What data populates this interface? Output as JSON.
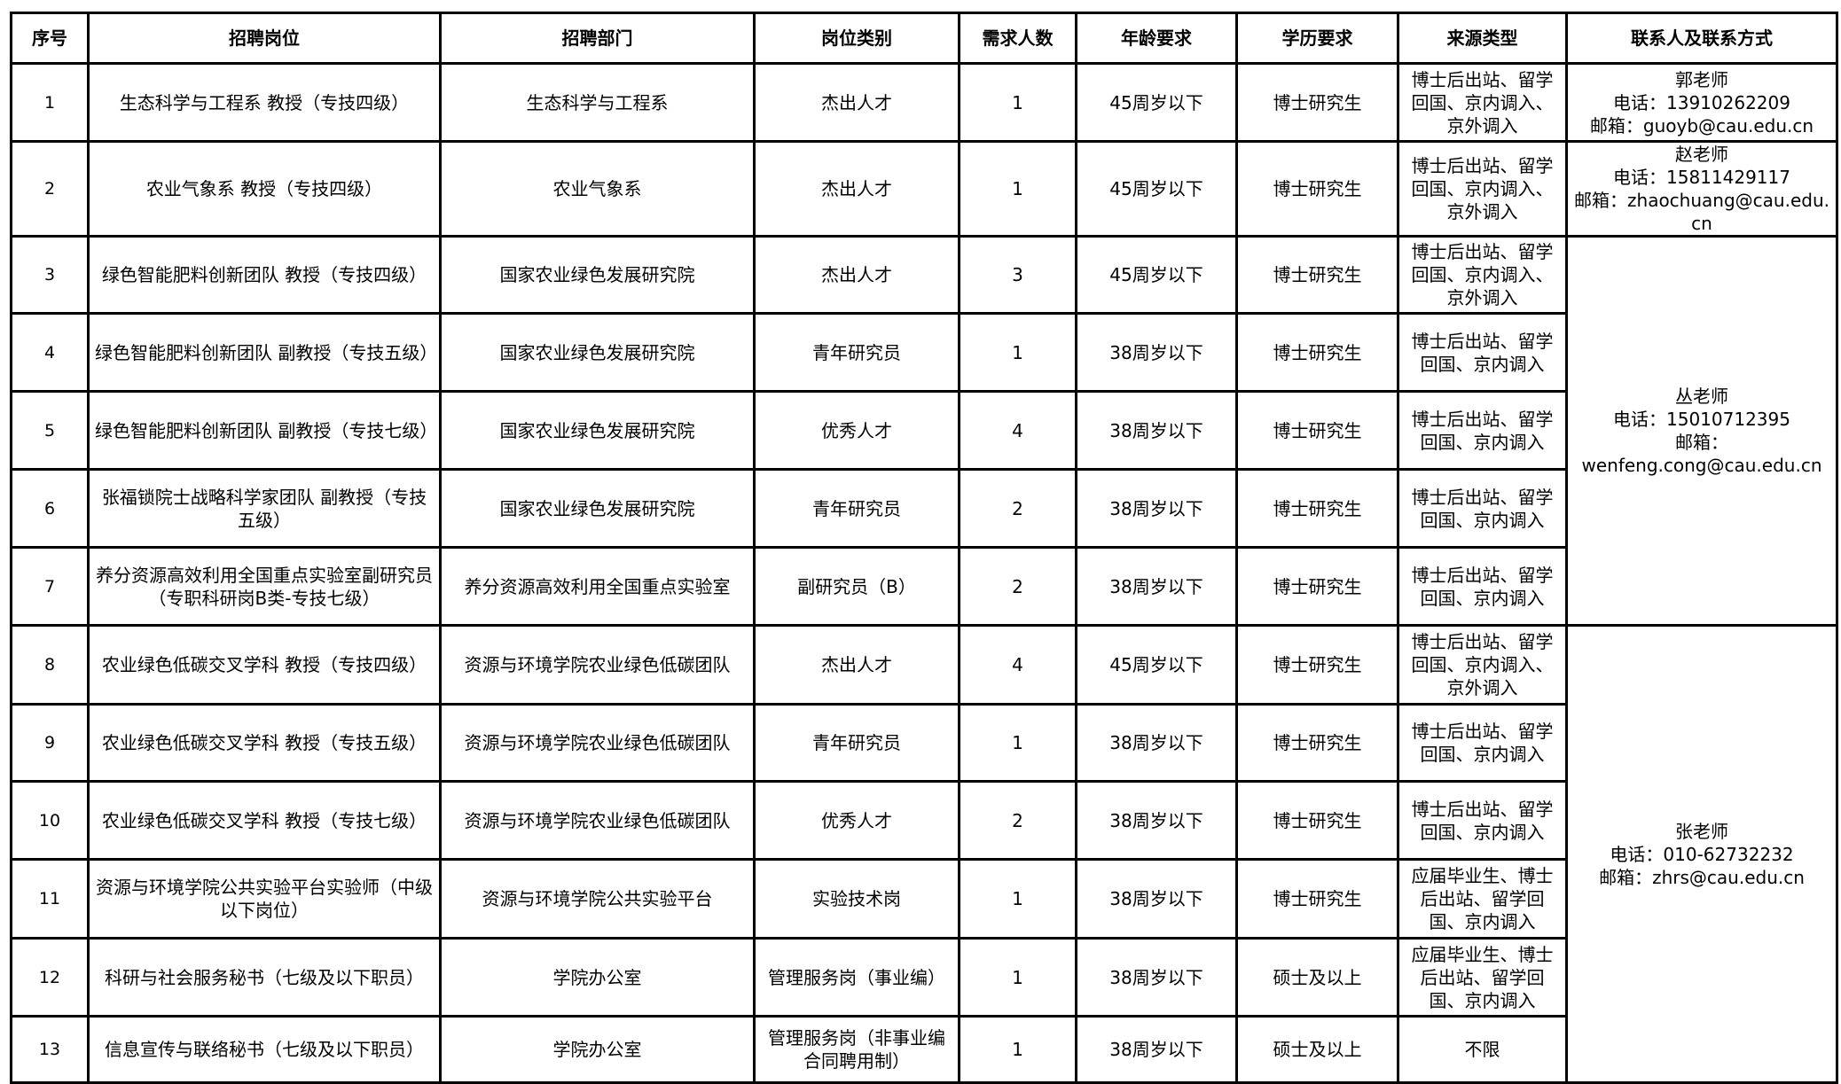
{
  "headers": [
    "序号",
    "招聘岗位",
    "招聘部门",
    "岗位类别",
    "需求人数",
    "年龄要求",
    "学历要求",
    "来源类型",
    "联系人及联系方式"
  ],
  "rows": [
    {
      "no": "1",
      "position": "生态科学与工程系 教授（专技四级）",
      "dept": "生态科学与工程系",
      "category": "杰出人才",
      "count": "1",
      "age": "45周岁以下",
      "edu": "博士研究生",
      "source": "博士后出站、留学回国、京内调入、京外调入"
    },
    {
      "no": "2",
      "position": "农业气象系 教授（专技四级）",
      "dept": "农业气象系",
      "category": "杰出人才",
      "count": "1",
      "age": "45周岁以下",
      "edu": "博士研究生",
      "source": "博士后出站、留学回国、京内调入、京外调入"
    },
    {
      "no": "3",
      "position": "绿色智能肥料创新团队 教授（专技四级）",
      "dept": "国家农业绿色发展研究院",
      "category": "杰出人才",
      "count": "3",
      "age": "45周岁以下",
      "edu": "博士研究生",
      "source": "博士后出站、留学回国、京内调入、京外调入"
    },
    {
      "no": "4",
      "position": "绿色智能肥料创新团队 副教授（专技五级）",
      "dept": "国家农业绿色发展研究院",
      "category": "青年研究员",
      "count": "1",
      "age": "38周岁以下",
      "edu": "博士研究生",
      "source": "博士后出站、留学回国、京内调入"
    },
    {
      "no": "5",
      "position": "绿色智能肥料创新团队 副教授（专技七级）",
      "dept": "国家农业绿色发展研究院",
      "category": "优秀人才",
      "count": "4",
      "age": "38周岁以下",
      "edu": "博士研究生",
      "source": "博士后出站、留学回国、京内调入"
    },
    {
      "no": "6",
      "position": "张福锁院士战略科学家团队 副教授（专技五级）",
      "dept": "国家农业绿色发展研究院",
      "category": "青年研究员",
      "count": "2",
      "age": "38周岁以下",
      "edu": "博士研究生",
      "source": "博士后出站、留学回国、京内调入"
    },
    {
      "no": "7",
      "position": "养分资源高效利用全国重点实验室副研究员（专职科研岗B类-专技七级）",
      "dept": "养分资源高效利用全国重点实验室",
      "category": "副研究员（B）",
      "count": "2",
      "age": "38周岁以下",
      "edu": "博士研究生",
      "source": "博士后出站、留学回国、京内调入"
    },
    {
      "no": "8",
      "position": "农业绿色低碳交叉学科 教授（专技四级）",
      "dept": "资源与环境学院农业绿色低碳团队",
      "category": "杰出人才",
      "count": "4",
      "age": "45周岁以下",
      "edu": "博士研究生",
      "source": "博士后出站、留学回国、京内调入、京外调入"
    },
    {
      "no": "9",
      "position": "农业绿色低碳交叉学科 教授（专技五级）",
      "dept": "资源与环境学院农业绿色低碳团队",
      "category": "青年研究员",
      "count": "1",
      "age": "38周岁以下",
      "edu": "博士研究生",
      "source": "博士后出站、留学回国、京内调入"
    },
    {
      "no": "10",
      "position": "农业绿色低碳交叉学科 教授（专技七级）",
      "dept": "资源与环境学院农业绿色低碳团队",
      "category": "优秀人才",
      "count": "2",
      "age": "38周岁以下",
      "edu": "博士研究生",
      "source": "博士后出站、留学回国、京内调入"
    },
    {
      "no": "11",
      "position": "资源与环境学院公共实验平台实验师（中级以下岗位）",
      "dept": "资源与环境学院公共实验平台",
      "category": "实验技术岗",
      "count": "1",
      "age": "38周岁以下",
      "edu": "博士研究生",
      "source": "应届毕业生、博士后出站、留学回国、京内调入"
    },
    {
      "no": "12",
      "position": "科研与社会服务秘书（七级及以下职员）",
      "dept": "学院办公室",
      "category": "管理服务岗（事业编）",
      "count": "1",
      "age": "38周岁以下",
      "edu": "硕士及以上",
      "source": "应届毕业生、博士后出站、留学回国、京内调入"
    },
    {
      "no": "13",
      "position": "信息宣传与联络秘书（七级及以下职员）",
      "dept": "学院办公室",
      "category": "管理服务岗（非事业编合同聘用制）",
      "count": "1",
      "age": "38周岁以下",
      "edu": "硕士及以上",
      "source": "不限"
    }
  ],
  "contacts": [
    {
      "name": "郭老师",
      "phone": "电话：13910262209",
      "email": "邮箱：guoyb@cau.edu.cn"
    },
    {
      "name": "赵老师",
      "phone": "电话：15811429117",
      "email": "邮箱：zhaochuang@cau.edu.cn"
    },
    {
      "name": "丛老师",
      "phone": "电话：15010712395",
      "email_label": "邮箱：",
      "email": "wenfeng.cong@cau.edu.cn"
    },
    {
      "name": "张老师",
      "phone": "电话：010-62732232",
      "email": "邮箱：zhrs@cau.edu.cn"
    }
  ]
}
